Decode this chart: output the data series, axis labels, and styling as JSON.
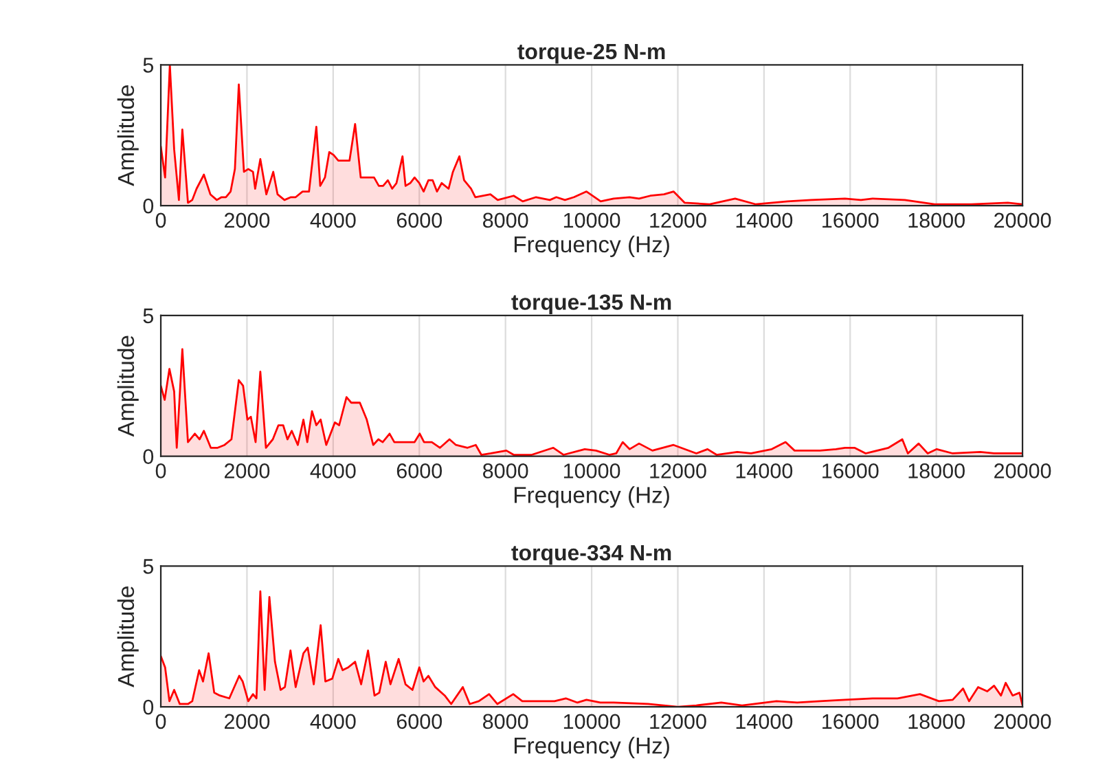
{
  "chart_data": [
    {
      "type": "area",
      "title": "torque-25 N-m",
      "xlabel": "Frequency (Hz)",
      "ylabel": "Amplitude",
      "xlim": [
        0,
        20000
      ],
      "ylim": [
        0,
        5
      ],
      "xticks": [
        0,
        2000,
        4000,
        6000,
        8000,
        10000,
        12000,
        14000,
        16000,
        18000,
        20000
      ],
      "yticks": [
        0,
        5
      ],
      "grid": "x",
      "series": [
        {
          "color": "#ff0000",
          "x": [
            0,
            100,
            210,
            310,
            420,
            500,
            630,
            730,
            830,
            1000,
            1150,
            1300,
            1410,
            1510,
            1620,
            1720,
            1810,
            1930,
            2030,
            2140,
            2190,
            2310,
            2450,
            2610,
            2710,
            2870,
            3020,
            3130,
            3290,
            3440,
            3610,
            3700,
            3810,
            3910,
            4010,
            4120,
            4220,
            4380,
            4510,
            4640,
            4800,
            4950,
            5060,
            5160,
            5270,
            5370,
            5470,
            5610,
            5680,
            5790,
            5890,
            6000,
            6100,
            6210,
            6310,
            6410,
            6520,
            6680,
            6780,
            6930,
            7040,
            7200,
            7300,
            7650,
            7820,
            8190,
            8400,
            8710,
            9030,
            9180,
            9380,
            9590,
            9880,
            10210,
            10510,
            10880,
            11100,
            11360,
            11680,
            11900,
            12160,
            12740,
            13330,
            13800,
            14550,
            15090,
            15880,
            16250,
            16520,
            17270,
            17960,
            18810,
            19660,
            20000
          ],
          "values": [
            2.1,
            1.0,
            5.0,
            2.0,
            0.2,
            2.7,
            0.1,
            0.2,
            0.6,
            1.1,
            0.4,
            0.2,
            0.3,
            0.3,
            0.5,
            1.3,
            4.3,
            1.2,
            1.3,
            1.2,
            0.6,
            1.65,
            0.4,
            1.2,
            0.4,
            0.2,
            0.3,
            0.3,
            0.5,
            0.5,
            2.8,
            0.7,
            1.0,
            1.9,
            1.8,
            1.6,
            1.6,
            1.6,
            2.9,
            1.0,
            1.0,
            1.0,
            0.7,
            0.7,
            0.9,
            0.6,
            0.8,
            1.75,
            0.7,
            0.8,
            1.0,
            0.8,
            0.5,
            0.9,
            0.9,
            0.5,
            0.8,
            0.6,
            1.2,
            1.75,
            0.9,
            0.6,
            0.3,
            0.4,
            0.2,
            0.35,
            0.15,
            0.3,
            0.2,
            0.3,
            0.2,
            0.3,
            0.5,
            0.15,
            0.25,
            0.3,
            0.25,
            0.35,
            0.4,
            0.5,
            0.1,
            0.05,
            0.25,
            0.05,
            0.15,
            0.2,
            0.25,
            0.2,
            0.25,
            0.2,
            0.05,
            0.05,
            0.1,
            0.05
          ]
        }
      ]
    },
    {
      "type": "area",
      "title": "torque-135 N-m",
      "xlabel": "Frequency (Hz)",
      "ylabel": "Amplitude",
      "xlim": [
        0,
        20000
      ],
      "ylim": [
        0,
        5
      ],
      "xticks": [
        0,
        2000,
        4000,
        6000,
        8000,
        10000,
        12000,
        14000,
        16000,
        18000,
        20000
      ],
      "yticks": [
        0,
        5
      ],
      "grid": "x",
      "series": [
        {
          "color": "#ff0000",
          "x": [
            0,
            90,
            200,
            310,
            370,
            500,
            630,
            790,
            900,
            1000,
            1160,
            1320,
            1480,
            1640,
            1810,
            1910,
            2010,
            2090,
            2200,
            2310,
            2440,
            2600,
            2730,
            2840,
            2940,
            3040,
            3180,
            3310,
            3400,
            3510,
            3610,
            3710,
            3840,
            4040,
            4140,
            4310,
            4420,
            4620,
            4780,
            4930,
            5050,
            5150,
            5310,
            5420,
            5890,
            6010,
            6110,
            6290,
            6480,
            6700,
            6850,
            7120,
            7310,
            7440,
            7660,
            8020,
            8190,
            8610,
            9110,
            9350,
            9840,
            10100,
            10410,
            10570,
            10720,
            10880,
            11100,
            11410,
            11900,
            12430,
            12690,
            12900,
            13380,
            13700,
            14180,
            14500,
            14710,
            15300,
            15670,
            15880,
            16100,
            16360,
            16890,
            17210,
            17340,
            17590,
            17800,
            18010,
            18380,
            19020,
            19340,
            20000
          ],
          "values": [
            2.5,
            2.0,
            3.1,
            2.3,
            0.3,
            3.8,
            0.5,
            0.8,
            0.6,
            0.9,
            0.3,
            0.3,
            0.4,
            0.6,
            2.7,
            2.5,
            1.3,
            1.4,
            0.5,
            3.0,
            0.3,
            0.6,
            1.1,
            1.1,
            0.6,
            0.9,
            0.4,
            1.3,
            0.5,
            1.6,
            1.1,
            1.3,
            0.4,
            1.2,
            1.1,
            2.1,
            1.9,
            1.9,
            1.3,
            0.4,
            0.6,
            0.5,
            0.8,
            0.5,
            0.5,
            0.8,
            0.5,
            0.5,
            0.3,
            0.6,
            0.4,
            0.3,
            0.4,
            0.05,
            0.1,
            0.2,
            0.05,
            0.05,
            0.3,
            0.05,
            0.25,
            0.2,
            0.05,
            0.1,
            0.5,
            0.25,
            0.45,
            0.2,
            0.4,
            0.1,
            0.25,
            0.05,
            0.15,
            0.1,
            0.25,
            0.5,
            0.2,
            0.2,
            0.25,
            0.3,
            0.3,
            0.1,
            0.3,
            0.6,
            0.1,
            0.45,
            0.1,
            0.25,
            0.1,
            0.15,
            0.1,
            0.1
          ]
        }
      ]
    },
    {
      "type": "area",
      "title": "torque-334 N-m",
      "xlabel": "Frequency (Hz)",
      "ylabel": "Amplitude",
      "xlim": [
        0,
        20000
      ],
      "ylim": [
        0,
        5
      ],
      "xticks": [
        0,
        2000,
        4000,
        6000,
        8000,
        10000,
        12000,
        14000,
        16000,
        18000,
        20000
      ],
      "yticks": [
        0,
        5
      ],
      "grid": "x",
      "series": [
        {
          "color": "#ff0000",
          "x": [
            0,
            100,
            200,
            310,
            440,
            630,
            730,
            890,
            980,
            1110,
            1240,
            1370,
            1590,
            1820,
            1900,
            2030,
            2140,
            2220,
            2310,
            2410,
            2520,
            2650,
            2780,
            2880,
            3010,
            3130,
            3310,
            3410,
            3550,
            3710,
            3820,
            3980,
            4120,
            4220,
            4350,
            4510,
            4650,
            4810,
            4960,
            5070,
            5220,
            5330,
            5520,
            5680,
            5840,
            6000,
            6100,
            6210,
            6370,
            6590,
            6740,
            7010,
            7170,
            7380,
            7620,
            7810,
            8180,
            8390,
            8710,
            9140,
            9400,
            9670,
            9880,
            10200,
            10510,
            11310,
            12000,
            12430,
            13010,
            13490,
            14290,
            14770,
            15300,
            15880,
            16520,
            17100,
            17620,
            18060,
            18380,
            18620,
            18760,
            18970,
            19180,
            19340,
            19500,
            19610,
            19770,
            19930,
            20000
          ],
          "values": [
            1.8,
            1.4,
            0.2,
            0.6,
            0.1,
            0.1,
            0.2,
            1.3,
            0.9,
            1.9,
            0.5,
            0.4,
            0.3,
            1.1,
            0.9,
            0.2,
            0.45,
            0.3,
            4.1,
            0.6,
            3.9,
            1.6,
            0.6,
            0.7,
            2.0,
            0.7,
            1.9,
            2.1,
            0.8,
            2.9,
            0.9,
            1.0,
            1.7,
            1.3,
            1.4,
            1.6,
            0.8,
            2.0,
            0.4,
            0.5,
            1.6,
            0.8,
            1.7,
            0.8,
            0.6,
            1.4,
            0.9,
            1.1,
            0.7,
            0.4,
            0.1,
            0.7,
            0.1,
            0.2,
            0.45,
            0.1,
            0.45,
            0.2,
            0.2,
            0.2,
            0.3,
            0.15,
            0.25,
            0.15,
            0.15,
            0.1,
            0.0,
            0.05,
            0.15,
            0.05,
            0.2,
            0.15,
            0.2,
            0.25,
            0.3,
            0.3,
            0.45,
            0.2,
            0.25,
            0.65,
            0.2,
            0.7,
            0.55,
            0.75,
            0.4,
            0.85,
            0.4,
            0.5,
            0.05
          ]
        }
      ]
    }
  ]
}
